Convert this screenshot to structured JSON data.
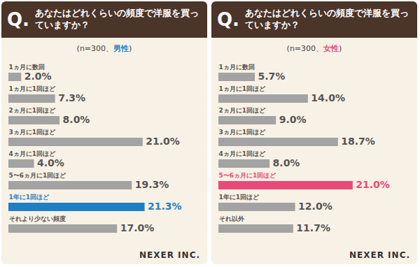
{
  "chart_data": [
    {
      "type": "bar",
      "orientation": "horizontal",
      "title_badge": "Q.",
      "title": "あなたはどれくらいの頻度で洋服を買っていますか？",
      "subtitle": "(n=300、男性)",
      "subtitle_highlight": "男性",
      "categories": [
        "1ヵ月に数回",
        "1ヵ月に1回ほど",
        "2ヵ月に1回ほど",
        "3ヵ月に1回ほど",
        "4ヵ月に1回ほど",
        "5〜6ヵ月に1回ほど",
        "1年に1回ほど",
        "それより少ない頻度"
      ],
      "values": [
        2.0,
        7.3,
        8.0,
        21.0,
        4.0,
        19.3,
        21.3,
        17.0
      ],
      "value_labels": [
        "2.0%",
        "7.3%",
        "8.0%",
        "21.0%",
        "4.0%",
        "19.3%",
        "21.3%",
        "17.0%"
      ],
      "colors": [
        "#a3a3a3",
        "#a3a3a3",
        "#a3a3a3",
        "#a3a3a3",
        "#a3a3a3",
        "#a3a3a3",
        "#1f7fc4",
        "#a3a3a3"
      ],
      "xlim": [
        0,
        30
      ],
      "data_labels": true,
      "tick_labels": false,
      "grid": false,
      "source": "NEXER INC."
    },
    {
      "type": "bar",
      "orientation": "horizontal",
      "title_badge": "Q.",
      "title": "あなたはどれくらいの頻度で洋服を買っていますか？",
      "subtitle": "(n=300、女性)",
      "subtitle_highlight": "女性",
      "categories": [
        "1ヵ月に数回",
        "1ヵ月に1回ほど",
        "2ヵ月に1回ほど",
        "3ヵ月に1回ほど",
        "4ヵ月に1回ほど",
        "5〜6ヵ月に1回ほど",
        "1年に1回ほど",
        "それ以外"
      ],
      "values": [
        5.7,
        14.0,
        9.0,
        18.7,
        8.0,
        21.0,
        12.0,
        11.7
      ],
      "value_labels": [
        "5.7%",
        "14.0%",
        "9.0%",
        "18.7%",
        "8.0%",
        "21.0%",
        "12.0%",
        "11.7%"
      ],
      "colors": [
        "#a3a3a3",
        "#a3a3a3",
        "#a3a3a3",
        "#a3a3a3",
        "#a3a3a3",
        "#e84a78",
        "#a3a3a3",
        "#a3a3a3"
      ],
      "xlim": [
        0,
        30
      ],
      "data_labels": true,
      "tick_labels": false,
      "grid": false,
      "source": "NEXER INC."
    }
  ]
}
